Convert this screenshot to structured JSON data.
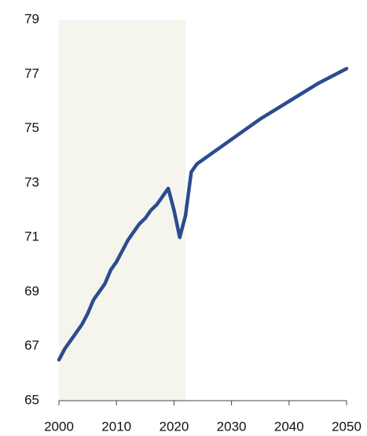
{
  "chart_data": {
    "type": "line",
    "x": [
      2000,
      2001,
      2002,
      2003,
      2004,
      2005,
      2006,
      2007,
      2008,
      2009,
      2010,
      2011,
      2012,
      2013,
      2014,
      2015,
      2016,
      2017,
      2018,
      2019,
      2020,
      2021,
      2022,
      2023,
      2024,
      2025,
      2030,
      2035,
      2040,
      2045,
      2050
    ],
    "series": [
      {
        "color": "#2b4c8e",
        "values": [
          66.5,
          66.9,
          67.2,
          67.5,
          67.8,
          68.2,
          68.7,
          69.0,
          69.3,
          69.8,
          70.1,
          70.5,
          70.9,
          71.2,
          71.5,
          71.7,
          72.0,
          72.2,
          72.5,
          72.8,
          72.0,
          71.0,
          71.8,
          73.4,
          73.7,
          73.85,
          74.6,
          75.35,
          76.0,
          76.65,
          77.2
        ]
      }
    ],
    "xlim": [
      2000,
      2050
    ],
    "xticks": [
      2000,
      2010,
      2020,
      2030,
      2040,
      2050
    ],
    "ylim": [
      65,
      79
    ],
    "yticks": [
      65,
      67,
      69,
      71,
      73,
      75,
      77,
      79
    ],
    "shaded_x": [
      2000,
      2022
    ],
    "shade_color": "#f5f5ee"
  }
}
